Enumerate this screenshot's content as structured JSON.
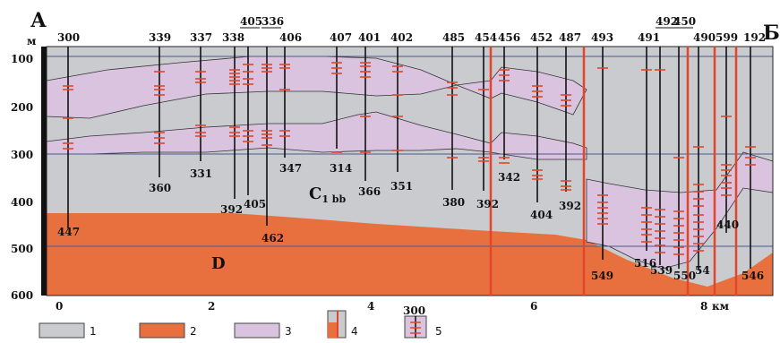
{
  "section": {
    "start_label": "А",
    "end_label": "Б",
    "depth_unit": "м",
    "distance_unit": "км",
    "depth_ticks": [
      "100",
      "200",
      "300",
      "400",
      "500",
      "600"
    ],
    "distance_ticks": [
      "0",
      "2",
      "4",
      "6",
      "8"
    ]
  },
  "well_tops": [
    "300",
    "339",
    "337",
    "338",
    "405",
    "336",
    "406",
    "407",
    "401",
    "402",
    "485",
    "454",
    "456",
    "452",
    "487",
    "493",
    "491",
    "492",
    "450",
    "490",
    "599",
    "192"
  ],
  "well_bottoms": [
    "447",
    "360",
    "331",
    "392",
    "405",
    "462",
    "347",
    "314",
    "366",
    "351",
    "380",
    "392",
    "342",
    "404",
    "392",
    "549",
    "516",
    "539",
    "550",
    "54",
    "440",
    "546"
  ],
  "unit_labels": {
    "carboniferous": "C",
    "carboniferous_sub": "1 bb",
    "devonian": "D"
  },
  "legend": {
    "items": [
      {
        "num": "1",
        "color": "#c9cbce"
      },
      {
        "num": "2",
        "color": "#e8703f"
      },
      {
        "num": "3",
        "color": "#d9c3df"
      },
      {
        "num": "4",
        "color": "#e8703f"
      },
      {
        "num": "5",
        "color": "#d9c3df"
      }
    ],
    "item5_header": "300"
  }
}
